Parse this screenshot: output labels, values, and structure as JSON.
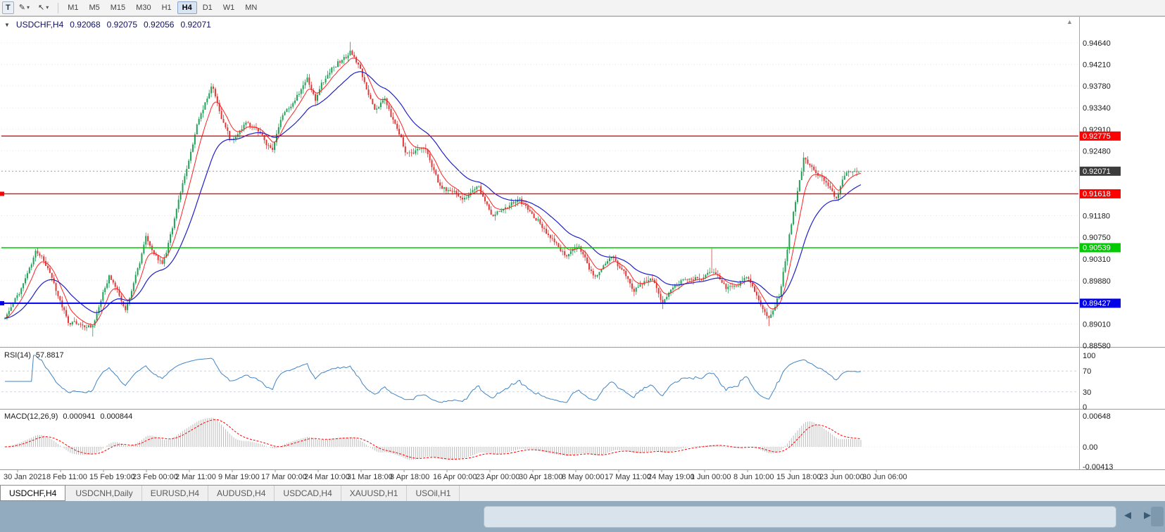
{
  "toolbar": {
    "text_tool_label": "T",
    "timeframes": [
      "M1",
      "M5",
      "M15",
      "M30",
      "H1",
      "H4",
      "D1",
      "W1",
      "MN"
    ],
    "active_timeframe": "H4"
  },
  "icons": {
    "collapse": "▼",
    "caret_down": "▾",
    "pen_tool": "✎",
    "cursor_tool": "↖",
    "scroll_left": "◀",
    "scroll_right": "▶",
    "scroll_up": "▲"
  },
  "chart": {
    "symbol_period": "USDCHF,H4",
    "open": "0.92068",
    "high": "0.92075",
    "low": "0.92056",
    "close": "0.92071",
    "current_price_label": "0.92071",
    "price_ticks": [
      "0.94640",
      "0.94210",
      "0.93780",
      "0.93340",
      "0.92910",
      "0.92480",
      "0.91180",
      "0.90750",
      "0.90310",
      "0.89880",
      "0.89010",
      "0.88580"
    ],
    "hlines": [
      {
        "price": 0.92775,
        "label": "0.92775",
        "color": "#ff0000",
        "width": 1.4,
        "edge_marker": false
      },
      {
        "price": 0.91618,
        "label": "0.91618",
        "color": "#ff0000",
        "width": 1.4,
        "edge_marker": true
      },
      {
        "price": 0.90539,
        "label": "0.90539",
        "color": "#00ca00",
        "width": 1.6,
        "edge_marker": false
      },
      {
        "price": 0.89427,
        "label": "0.89427",
        "color": "#0000e8",
        "width": 2,
        "edge_marker": true
      }
    ],
    "time_labels": [
      "30 Jan 2021",
      "8 Feb 11:00",
      "15 Feb 19:00",
      "23 Feb 00:00",
      "2 Mar 11:00",
      "9 Mar 19:00",
      "17 Mar 00:00",
      "24 Mar 10:00",
      "31 Mar 18:00",
      "8 Apr 18:00",
      "16 Apr 00:00",
      "23 Apr 00:00",
      "30 Apr 18:00",
      "8 May 00:00",
      "17 May 11:00",
      "24 May 19:00",
      "1 Jun 00:00",
      "8 Jun 10:00",
      "15 Jun 18:00",
      "23 Jun 00:00",
      "30 Jun 06:00"
    ]
  },
  "rsi": {
    "name": "RSI(14)",
    "value": "57.8817",
    "ticks": [
      "100",
      "70",
      "30",
      "0"
    ],
    "levels": [
      70,
      30
    ]
  },
  "macd": {
    "name": "MACD(12,26,9)",
    "macd_value": "0.000941",
    "signal_value": "0.000844",
    "ticks": [
      "0.00648",
      "0.00",
      "-0.00413"
    ]
  },
  "tabs": [
    {
      "label": "USDCHF,H4",
      "active": true
    },
    {
      "label": "USDCNH,Daily",
      "active": false
    },
    {
      "label": "EURUSD,H4",
      "active": false
    },
    {
      "label": "AUDUSD,H4",
      "active": false
    },
    {
      "label": "USDCAD,H4",
      "active": false
    },
    {
      "label": "XAUUSD,H1",
      "active": false
    },
    {
      "label": "USOil,H1",
      "active": false
    }
  ],
  "chart_data": {
    "type": "candlestick",
    "symbol": "USDCHF",
    "timeframe": "H4",
    "candles_count": 420,
    "y_axis_range": [
      0.8858,
      0.9464
    ],
    "macd_axis_range": [
      -0.00413,
      0.00648
    ],
    "current_close": 0.92071,
    "price_path": [
      [
        0,
        0.8912
      ],
      [
        15,
        0.9048
      ],
      [
        22,
        0.901
      ],
      [
        31,
        0.8901
      ],
      [
        43,
        0.8881
      ],
      [
        51,
        0.8986
      ],
      [
        59,
        0.8917
      ],
      [
        69,
        0.9068
      ],
      [
        77,
        0.9012
      ],
      [
        94,
        0.9292
      ],
      [
        101,
        0.9373
      ],
      [
        110,
        0.9272
      ],
      [
        119,
        0.9318
      ],
      [
        126,
        0.9288
      ],
      [
        131,
        0.9254
      ],
      [
        136,
        0.9318
      ],
      [
        148,
        0.9398
      ],
      [
        152,
        0.9357
      ],
      [
        160,
        0.9428
      ],
      [
        169,
        0.9455
      ],
      [
        174,
        0.9428
      ],
      [
        181,
        0.9333
      ],
      [
        186,
        0.9358
      ],
      [
        196,
        0.9252
      ],
      [
        205,
        0.9262
      ],
      [
        213,
        0.9198
      ],
      [
        224,
        0.9162
      ],
      [
        231,
        0.9186
      ],
      [
        239,
        0.9124
      ],
      [
        251,
        0.9163
      ],
      [
        263,
        0.9102
      ],
      [
        274,
        0.9038
      ],
      [
        281,
        0.9058
      ],
      [
        289,
        0.8997
      ],
      [
        298,
        0.9038
      ],
      [
        308,
        0.8962
      ],
      [
        317,
        0.8989
      ],
      [
        322,
        0.8938
      ],
      [
        332,
        0.8979
      ],
      [
        346,
        0.8998
      ],
      [
        353,
        0.8968
      ],
      [
        363,
        0.8986
      ],
      [
        374,
        0.8907
      ],
      [
        379,
        0.8957
      ],
      [
        386,
        0.9128
      ],
      [
        391,
        0.9238
      ],
      [
        398,
        0.9198
      ],
      [
        407,
        0.9158
      ],
      [
        412,
        0.9213
      ],
      [
        419,
        0.92071
      ]
    ],
    "wick_overrides": [
      {
        "i": 43,
        "l": 0.8876
      },
      {
        "i": 101,
        "h": 0.9383
      },
      {
        "i": 169,
        "h": 0.9466
      },
      {
        "i": 322,
        "l": 0.8931
      },
      {
        "i": 346,
        "h": 0.9053
      },
      {
        "i": 374,
        "l": 0.8897
      },
      {
        "i": 391,
        "h": 0.9245
      }
    ],
    "overlays": [
      {
        "name": "fast-ma",
        "type": "ema",
        "period": 8,
        "color": "#ff2020"
      },
      {
        "name": "slow-ma",
        "type": "ema",
        "period": 26,
        "color": "#2020c8"
      }
    ],
    "indicators": [
      {
        "name": "RSI",
        "period": 14,
        "current": 57.8817
      },
      {
        "name": "MACD",
        "fast": 12,
        "slow": 26,
        "signal": 9,
        "current_macd": 0.000941,
        "current_signal": 0.000844
      }
    ],
    "hlines": [
      0.92775,
      0.91618,
      0.90539,
      0.89427
    ],
    "colors": {
      "bull": "#21a158",
      "bear": "#e03838",
      "ma_fast": "#ff2020",
      "ma_slow": "#2020c8",
      "rsi": "#4085c6",
      "macd_hist": "#bbbbbb",
      "macd_signal": "#ff0000",
      "grid": "#e4e4e4"
    }
  }
}
